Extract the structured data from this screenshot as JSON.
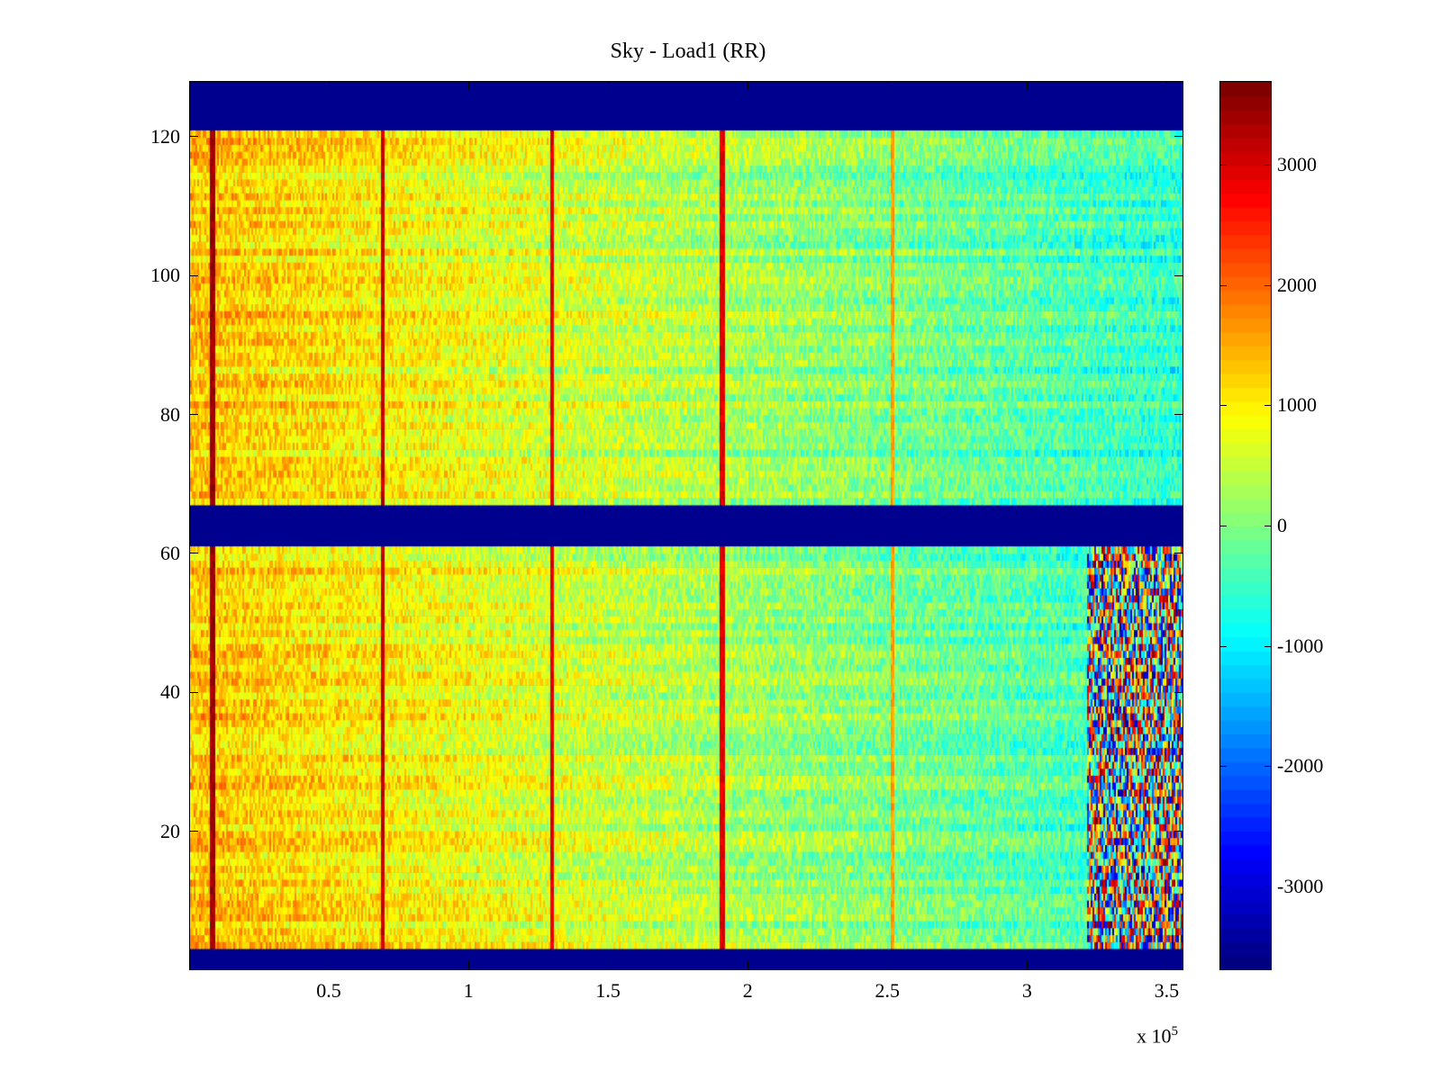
{
  "chart_data": {
    "type": "heatmap",
    "title": "Sky - Load1 (RR)",
    "xlabel": "",
    "ylabel": "",
    "x_multiplier": "x 10",
    "x_multiplier_exponent": "5",
    "xlim": [
      0,
      3.56
    ],
    "ylim": [
      0,
      128
    ],
    "xticks": [
      0.5,
      1,
      1.5,
      2,
      2.5,
      3,
      3.5
    ],
    "xtick_labels": [
      "0.5",
      "1",
      "1.5",
      "2",
      "2.5",
      "3",
      "3.5"
    ],
    "yticks": [
      20,
      40,
      60,
      80,
      100,
      120
    ],
    "ytick_labels": [
      "20",
      "40",
      "60",
      "80",
      "100",
      "120"
    ],
    "colorbar": {
      "range": [
        -3700,
        3700
      ],
      "ticks": [
        3000,
        2000,
        1000,
        0,
        -1000,
        -2000,
        -3000
      ],
      "tick_labels": [
        "3000",
        "2000",
        "1000",
        "0",
        "-1000",
        "-2000",
        "-3000"
      ],
      "colormap": "jet"
    },
    "masked_rows": [
      [
        0,
        3
      ],
      [
        61,
        67
      ],
      [
        121,
        128
      ]
    ],
    "data_x_extent": [
      0,
      3.56
    ],
    "gradient": {
      "x_start": 0,
      "value_start": 1350,
      "x_end": 3.56,
      "value_end": -600
    },
    "stripes": [
      {
        "x": 0.08,
        "value": 3500
      },
      {
        "x": 0.69,
        "value": 3200
      },
      {
        "x": 1.3,
        "value": 3000
      },
      {
        "x": 1.91,
        "value": 3000
      },
      {
        "x": 2.52,
        "value": 1600
      }
    ],
    "noisy_region": {
      "x_start": 3.22,
      "x_end": 3.56,
      "y_start": 3,
      "y_end": 61,
      "value_min": -3600,
      "value_max": 3700
    }
  }
}
